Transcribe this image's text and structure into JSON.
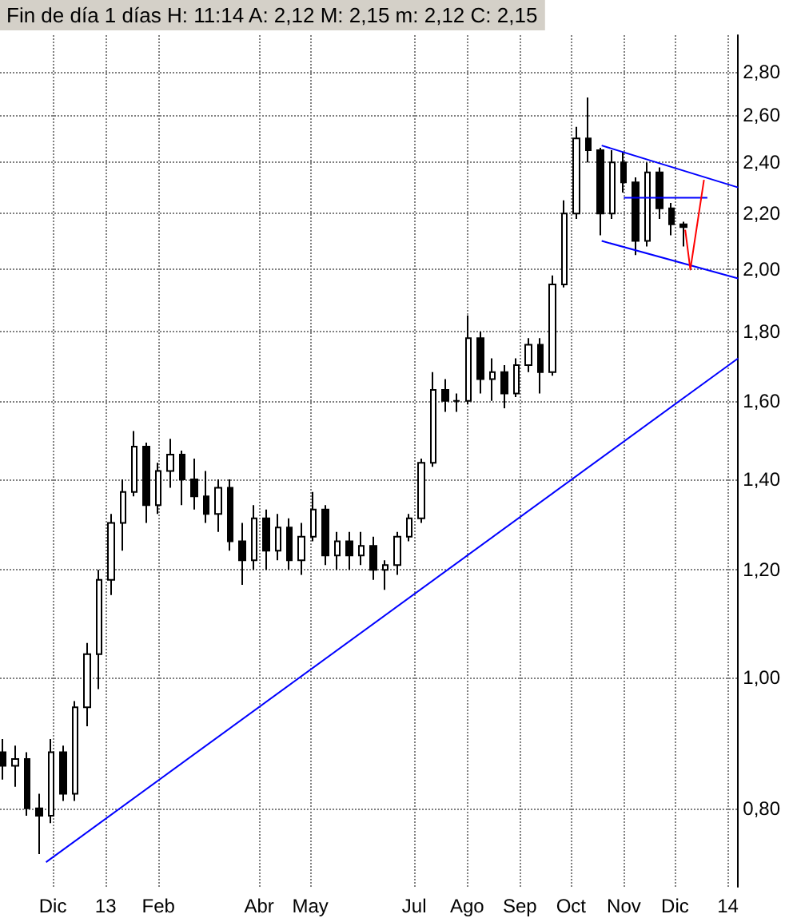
{
  "chart_data": {
    "type": "candlestick",
    "title": "Fin de día 1 días H: 11:14 A: 2,12 M: 2,15 m: 2,12 C: 2,15",
    "log": "y",
    "grid": true,
    "marker": "none",
    "line_style": "solid",
    "xlim": [
      "2012-10-31",
      "2014-01-07"
    ],
    "xticks": [
      {
        "value": "2012-12-01",
        "label": "Dic"
      },
      {
        "value": "2013-01-01",
        "label": "13"
      },
      {
        "value": "2013-02-01",
        "label": "Feb"
      },
      {
        "value": "2013-04-01",
        "label": "Abr"
      },
      {
        "value": "2013-05-01",
        "label": "May"
      },
      {
        "value": "2013-07-01",
        "label": "Jul"
      },
      {
        "value": "2013-08-01",
        "label": "Ago"
      },
      {
        "value": "2013-09-01",
        "label": "Sep"
      },
      {
        "value": "2013-10-01",
        "label": "Oct"
      },
      {
        "value": "2013-11-01",
        "label": "Nov"
      },
      {
        "value": "2013-12-01",
        "label": "Dic"
      },
      {
        "value": "2014-01-01",
        "label": "14"
      }
    ],
    "ylim": [
      0.7,
      2.98
    ],
    "yticks": [
      {
        "value": 0.8,
        "label": "0,80"
      },
      {
        "value": 1.0,
        "label": "1,00"
      },
      {
        "value": 1.2,
        "label": "1,20"
      },
      {
        "value": 1.4,
        "label": "1,40"
      },
      {
        "value": 1.6,
        "label": "1,60"
      },
      {
        "value": 1.8,
        "label": "1,80"
      },
      {
        "value": 2.0,
        "label": "2,00"
      },
      {
        "value": 2.2,
        "label": "2,20"
      },
      {
        "value": 2.4,
        "label": "2,40"
      },
      {
        "value": 2.6,
        "label": "2,60"
      },
      {
        "value": 2.8,
        "label": "2,80"
      }
    ],
    "series": [
      {
        "color": "#000000",
        "x": [
          "2012-11-02",
          "2012-11-09",
          "2012-11-16",
          "2012-11-23",
          "2012-11-30",
          "2012-12-07",
          "2012-12-14",
          "2012-12-21",
          "2012-12-28",
          "2013-01-04",
          "2013-01-11",
          "2013-01-18",
          "2013-01-25",
          "2013-02-01",
          "2013-02-08",
          "2013-02-15",
          "2013-02-22",
          "2013-03-01",
          "2013-03-08",
          "2013-03-15",
          "2013-03-22",
          "2013-03-29",
          "2013-04-05",
          "2013-04-12",
          "2013-04-19",
          "2013-04-26",
          "2013-05-03",
          "2013-05-10",
          "2013-05-17",
          "2013-05-24",
          "2013-05-31",
          "2013-06-07",
          "2013-06-14",
          "2013-06-21",
          "2013-06-28",
          "2013-07-05",
          "2013-07-12",
          "2013-07-19",
          "2013-07-26",
          "2013-08-02",
          "2013-08-09",
          "2013-08-16",
          "2013-08-23",
          "2013-08-30",
          "2013-09-06",
          "2013-09-13",
          "2013-09-20",
          "2013-09-27",
          "2013-10-04",
          "2013-10-11",
          "2013-10-18",
          "2013-10-25",
          "2013-11-01",
          "2013-11-08",
          "2013-11-15",
          "2013-11-22",
          "2013-11-29",
          "2013-12-06"
        ],
        "ohlc": [
          [
            0.88,
            0.9,
            0.84,
            0.86
          ],
          [
            0.86,
            0.89,
            0.83,
            0.87
          ],
          [
            0.87,
            0.88,
            0.79,
            0.8
          ],
          [
            0.8,
            0.82,
            0.74,
            0.79
          ],
          [
            0.79,
            0.9,
            0.78,
            0.88
          ],
          [
            0.88,
            0.89,
            0.81,
            0.82
          ],
          [
            0.82,
            0.96,
            0.81,
            0.95
          ],
          [
            0.95,
            1.06,
            0.92,
            1.04
          ],
          [
            1.04,
            1.2,
            0.98,
            1.18
          ],
          [
            1.18,
            1.32,
            1.15,
            1.3
          ],
          [
            1.3,
            1.4,
            1.24,
            1.37
          ],
          [
            1.37,
            1.52,
            1.36,
            1.48
          ],
          [
            1.48,
            1.49,
            1.3,
            1.34
          ],
          [
            1.34,
            1.44,
            1.32,
            1.42
          ],
          [
            1.42,
            1.5,
            1.38,
            1.46
          ],
          [
            1.46,
            1.47,
            1.34,
            1.4
          ],
          [
            1.4,
            1.45,
            1.33,
            1.36
          ],
          [
            1.36,
            1.42,
            1.3,
            1.32
          ],
          [
            1.32,
            1.4,
            1.28,
            1.38
          ],
          [
            1.38,
            1.4,
            1.24,
            1.26
          ],
          [
            1.26,
            1.3,
            1.17,
            1.22
          ],
          [
            1.22,
            1.34,
            1.2,
            1.31
          ],
          [
            1.31,
            1.33,
            1.2,
            1.24
          ],
          [
            1.24,
            1.32,
            1.22,
            1.29
          ],
          [
            1.29,
            1.31,
            1.2,
            1.22
          ],
          [
            1.22,
            1.3,
            1.19,
            1.27
          ],
          [
            1.27,
            1.37,
            1.26,
            1.33
          ],
          [
            1.33,
            1.34,
            1.21,
            1.23
          ],
          [
            1.23,
            1.28,
            1.2,
            1.26
          ],
          [
            1.26,
            1.28,
            1.2,
            1.23
          ],
          [
            1.23,
            1.28,
            1.21,
            1.25
          ],
          [
            1.25,
            1.27,
            1.18,
            1.2
          ],
          [
            1.2,
            1.22,
            1.16,
            1.21
          ],
          [
            1.21,
            1.28,
            1.19,
            1.27
          ],
          [
            1.27,
            1.32,
            1.26,
            1.31
          ],
          [
            1.31,
            1.45,
            1.3,
            1.44
          ],
          [
            1.44,
            1.68,
            1.43,
            1.63
          ],
          [
            1.63,
            1.66,
            1.57,
            1.6
          ],
          [
            1.6,
            1.62,
            1.57,
            1.6
          ],
          [
            1.6,
            1.85,
            1.59,
            1.78
          ],
          [
            1.78,
            1.8,
            1.62,
            1.66
          ],
          [
            1.66,
            1.72,
            1.6,
            1.68
          ],
          [
            1.68,
            1.7,
            1.58,
            1.62
          ],
          [
            1.62,
            1.72,
            1.61,
            1.7
          ],
          [
            1.7,
            1.78,
            1.68,
            1.76
          ],
          [
            1.76,
            1.78,
            1.62,
            1.68
          ],
          [
            1.68,
            1.98,
            1.67,
            1.95
          ],
          [
            1.95,
            2.25,
            1.94,
            2.2
          ],
          [
            2.2,
            2.55,
            2.18,
            2.5
          ],
          [
            2.5,
            2.68,
            2.4,
            2.45
          ],
          [
            2.45,
            2.46,
            2.12,
            2.2
          ],
          [
            2.2,
            2.45,
            2.18,
            2.4
          ],
          [
            2.4,
            2.44,
            2.28,
            2.32
          ],
          [
            2.32,
            2.34,
            2.05,
            2.1
          ],
          [
            2.1,
            2.4,
            2.08,
            2.36
          ],
          [
            2.36,
            2.38,
            2.18,
            2.22
          ],
          [
            2.22,
            2.24,
            2.12,
            2.16
          ],
          [
            2.16,
            2.17,
            2.08,
            2.15
          ]
        ]
      },
      {
        "type": "line",
        "color": "#0000ff",
        "x": [
          "2012-11-27",
          "2014-01-07"
        ],
        "values": [
          0.73,
          1.72
        ]
      },
      {
        "type": "line",
        "color": "#0000ff",
        "x": [
          "2013-10-19",
          "2014-01-07"
        ],
        "values": [
          2.47,
          2.3
        ]
      },
      {
        "type": "line",
        "color": "#0000ff",
        "x": [
          "2013-10-19",
          "2014-01-07"
        ],
        "values": [
          2.1,
          1.97
        ]
      },
      {
        "type": "line",
        "color": "#0000ff",
        "x": [
          "2013-11-01",
          "2013-12-20"
        ],
        "values": [
          2.26,
          2.26
        ]
      },
      {
        "type": "line",
        "color": "#ff0000",
        "x": [
          "2013-12-07",
          "2013-12-10",
          "2013-12-18"
        ],
        "values": [
          2.14,
          2.0,
          2.33
        ]
      }
    ]
  }
}
